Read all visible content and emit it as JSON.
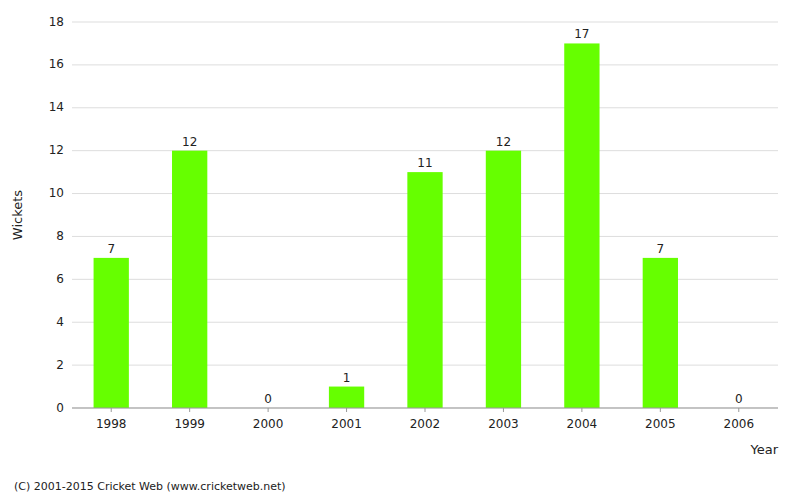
{
  "chart_data": {
    "type": "bar",
    "categories": [
      "1998",
      "1999",
      "2000",
      "2001",
      "2002",
      "2003",
      "2004",
      "2005",
      "2006"
    ],
    "values": [
      7,
      12,
      0,
      1,
      11,
      12,
      17,
      7,
      0
    ],
    "color": "#66ff00",
    "x_label": "Year",
    "y_label": "Wickets",
    "ylim": [
      0,
      18
    ],
    "yticks": [
      0,
      2,
      4,
      6,
      8,
      10,
      12,
      14,
      16,
      18
    ],
    "grid": true,
    "data_labels": true,
    "annotations": [
      "(C) 2001-2015 Cricket Web (www.cricketweb.net)"
    ]
  }
}
